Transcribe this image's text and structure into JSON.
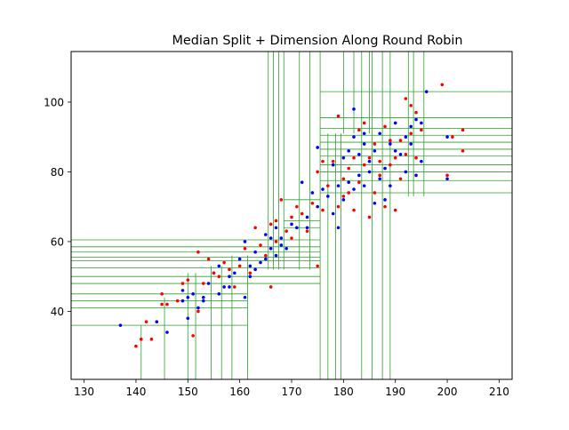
{
  "chart_data": {
    "type": "scatter",
    "title": "Median Split + Dimension Along Round Robin",
    "xlabel": "",
    "ylabel": "",
    "xlim": [
      127.5,
      212.5
    ],
    "ylim": [
      20.5,
      114.5
    ],
    "xticks": [
      130,
      140,
      150,
      160,
      170,
      180,
      190,
      200,
      210
    ],
    "yticks": [
      40,
      60,
      80,
      100
    ],
    "grid": false,
    "legend": "none",
    "colors": {
      "series_a": "#0000ff",
      "series_b": "#ff0000",
      "split_lines": "#2ca02c",
      "axes": "#000000"
    },
    "series": [
      {
        "color": "#0000ff",
        "points": [
          [
            137,
            36
          ],
          [
            144,
            37
          ],
          [
            146,
            34
          ],
          [
            149,
            43
          ],
          [
            149,
            46
          ],
          [
            150,
            38
          ],
          [
            150,
            44
          ],
          [
            151,
            45
          ],
          [
            152,
            41
          ],
          [
            153,
            43
          ],
          [
            153,
            44
          ],
          [
            154,
            48
          ],
          [
            155,
            51
          ],
          [
            156,
            45
          ],
          [
            156,
            53
          ],
          [
            157,
            47
          ],
          [
            158,
            47
          ],
          [
            158,
            50
          ],
          [
            159,
            51
          ],
          [
            160,
            55
          ],
          [
            161,
            44
          ],
          [
            161,
            60
          ],
          [
            162,
            50
          ],
          [
            162,
            53
          ],
          [
            163,
            52
          ],
          [
            163,
            57
          ],
          [
            164,
            54
          ],
          [
            165,
            55
          ],
          [
            165,
            62
          ],
          [
            166,
            58
          ],
          [
            166,
            61
          ],
          [
            167,
            56
          ],
          [
            167,
            64
          ],
          [
            168,
            59
          ],
          [
            168,
            61
          ],
          [
            169,
            58
          ],
          [
            170,
            65
          ],
          [
            171,
            64
          ],
          [
            172,
            77
          ],
          [
            173,
            64
          ],
          [
            173,
            67
          ],
          [
            174,
            74
          ],
          [
            175,
            70
          ],
          [
            175,
            87
          ],
          [
            176,
            75
          ],
          [
            177,
            73
          ],
          [
            178,
            68
          ],
          [
            178,
            82
          ],
          [
            179,
            64
          ],
          [
            179,
            76
          ],
          [
            180,
            72
          ],
          [
            180,
            84
          ],
          [
            181,
            77
          ],
          [
            181,
            86
          ],
          [
            182,
            75
          ],
          [
            182,
            90
          ],
          [
            182,
            98
          ],
          [
            183,
            79
          ],
          [
            183,
            85
          ],
          [
            184,
            76
          ],
          [
            184,
            88
          ],
          [
            184,
            91
          ],
          [
            185,
            80
          ],
          [
            185,
            83
          ],
          [
            186,
            71
          ],
          [
            186,
            86
          ],
          [
            187,
            78
          ],
          [
            187,
            91
          ],
          [
            188,
            72
          ],
          [
            188,
            81
          ],
          [
            189,
            76
          ],
          [
            189,
            88
          ],
          [
            190,
            86
          ],
          [
            190,
            94
          ],
          [
            191,
            85
          ],
          [
            192,
            80
          ],
          [
            192,
            90
          ],
          [
            193,
            88
          ],
          [
            193,
            93
          ],
          [
            194,
            79
          ],
          [
            194,
            95
          ],
          [
            195,
            83
          ],
          [
            195,
            94
          ],
          [
            196,
            103
          ],
          [
            200,
            78
          ],
          [
            200,
            90
          ]
        ]
      },
      {
        "color": "#ff0000",
        "points": [
          [
            140,
            30
          ],
          [
            141,
            32
          ],
          [
            142,
            37
          ],
          [
            143,
            32
          ],
          [
            145,
            45
          ],
          [
            145,
            42
          ],
          [
            146,
            42
          ],
          [
            148,
            43
          ],
          [
            149,
            48
          ],
          [
            150,
            49
          ],
          [
            151,
            33
          ],
          [
            152,
            57
          ],
          [
            152,
            40
          ],
          [
            153,
            48
          ],
          [
            154,
            55
          ],
          [
            155,
            51
          ],
          [
            156,
            50
          ],
          [
            157,
            54
          ],
          [
            158,
            52
          ],
          [
            159,
            47
          ],
          [
            160,
            53
          ],
          [
            161,
            58
          ],
          [
            162,
            51
          ],
          [
            163,
            64
          ],
          [
            164,
            59
          ],
          [
            165,
            56
          ],
          [
            166,
            47
          ],
          [
            166,
            65
          ],
          [
            167,
            60
          ],
          [
            167,
            66
          ],
          [
            168,
            72
          ],
          [
            169,
            63
          ],
          [
            170,
            67
          ],
          [
            170,
            61
          ],
          [
            171,
            70
          ],
          [
            172,
            68
          ],
          [
            173,
            63
          ],
          [
            174,
            71
          ],
          [
            175,
            53
          ],
          [
            175,
            80
          ],
          [
            176,
            69
          ],
          [
            176,
            83
          ],
          [
            177,
            76
          ],
          [
            178,
            83
          ],
          [
            179,
            96
          ],
          [
            179,
            70
          ],
          [
            180,
            73
          ],
          [
            180,
            78
          ],
          [
            181,
            74
          ],
          [
            181,
            81
          ],
          [
            182,
            84
          ],
          [
            182,
            69
          ],
          [
            183,
            92
          ],
          [
            183,
            77
          ],
          [
            184,
            82
          ],
          [
            184,
            94
          ],
          [
            185,
            67
          ],
          [
            185,
            84
          ],
          [
            186,
            74
          ],
          [
            186,
            88
          ],
          [
            187,
            83
          ],
          [
            187,
            79
          ],
          [
            188,
            70
          ],
          [
            188,
            93
          ],
          [
            189,
            82
          ],
          [
            189,
            89
          ],
          [
            190,
            69
          ],
          [
            190,
            84
          ],
          [
            191,
            78
          ],
          [
            191,
            89
          ],
          [
            192,
            101
          ],
          [
            192,
            85
          ],
          [
            193,
            99
          ],
          [
            193,
            91
          ],
          [
            194,
            97
          ],
          [
            194,
            84
          ],
          [
            195,
            92
          ],
          [
            199,
            105
          ],
          [
            200,
            79
          ],
          [
            201,
            90
          ],
          [
            203,
            86
          ],
          [
            203,
            92
          ]
        ]
      }
    ],
    "split_lines": {
      "vertical": [
        [
          141,
          20.5,
          36
        ],
        [
          145.5,
          20.5,
          44
        ],
        [
          150,
          20.5,
          51
        ],
        [
          151.5,
          20.5,
          51
        ],
        [
          154.5,
          20.5,
          53
        ],
        [
          156.5,
          20.5,
          53
        ],
        [
          158.5,
          20.5,
          56
        ],
        [
          161.5,
          20.5,
          56
        ],
        [
          165.5,
          52,
          114.5
        ],
        [
          166.5,
          52,
          114.5
        ],
        [
          167.5,
          52,
          114.5
        ],
        [
          168.5,
          52,
          114.5
        ],
        [
          171.5,
          52,
          114.5
        ],
        [
          173.5,
          52,
          114.5
        ],
        [
          175.5,
          20.5,
          114.5
        ],
        [
          177,
          20.5,
          91
        ],
        [
          178.5,
          20.5,
          91
        ],
        [
          179.5,
          20.5,
          91
        ],
        [
          183.5,
          20.5,
          114.5
        ],
        [
          185.5,
          20.5,
          114.5
        ],
        [
          187.5,
          20.5,
          114.5
        ],
        [
          189,
          20.5,
          114.5
        ],
        [
          192.5,
          73,
          114.5
        ],
        [
          193.5,
          73,
          114.5
        ],
        [
          195.5,
          73,
          114.5
        ],
        [
          182,
          91,
          114.5
        ],
        [
          180,
          91,
          114.5
        ],
        [
          185,
          91,
          114.5
        ]
      ],
      "horizontal": [
        [
          127.5,
          175.5,
          60.5
        ],
        [
          127.5,
          175.5,
          58.5
        ],
        [
          127.5,
          175.5,
          57
        ],
        [
          127.5,
          175.5,
          55.5
        ],
        [
          127.5,
          175.5,
          54.5
        ],
        [
          127.5,
          175.5,
          52.5
        ],
        [
          127.5,
          175.5,
          50
        ],
        [
          127.5,
          175.5,
          48
        ],
        [
          127.5,
          161.5,
          45
        ],
        [
          127.5,
          161.5,
          43
        ],
        [
          127.5,
          161.5,
          41
        ],
        [
          127.5,
          161.5,
          36
        ],
        [
          175.5,
          212.5,
          103
        ],
        [
          175.5,
          212.5,
          92.5
        ],
        [
          175.5,
          212.5,
          90.5
        ],
        [
          175.5,
          212.5,
          86.5
        ],
        [
          175.5,
          212.5,
          82
        ],
        [
          175.5,
          212.5,
          80
        ],
        [
          175.5,
          212.5,
          77.5
        ],
        [
          175.5,
          212.5,
          74
        ],
        [
          175.5,
          212.5,
          84.5
        ],
        [
          175.5,
          212.5,
          88.5
        ],
        [
          175.5,
          212.5,
          95.5
        ],
        [
          168.5,
          175.5,
          66
        ],
        [
          168.5,
          175.5,
          64
        ],
        [
          168.5,
          175.5,
          72
        ]
      ]
    }
  }
}
